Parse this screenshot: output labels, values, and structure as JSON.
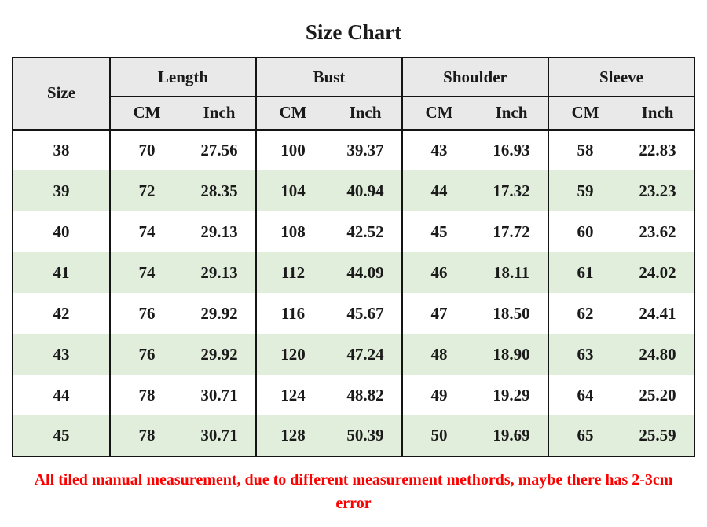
{
  "title": "Size Chart",
  "colors": {
    "header_bg": "#e9e9e9",
    "stripe_green": "#e1eedb",
    "border_black": "#141414",
    "text": "#1a1a1a",
    "note_red": "#fe0000"
  },
  "chart_data": {
    "type": "table",
    "title": "Size Chart",
    "corner_header": "Size",
    "column_groups": [
      "Length",
      "Bust",
      "Shoulder",
      "Sleeve"
    ],
    "unit_headers": [
      "CM",
      "Inch"
    ],
    "columns": [
      "Size",
      "Length CM",
      "Length Inch",
      "Bust CM",
      "Bust Inch",
      "Shoulder CM",
      "Shoulder Inch",
      "Sleeve CM",
      "Sleeve Inch"
    ],
    "rows": [
      [
        "38",
        "70",
        "27.56",
        "100",
        "39.37",
        "43",
        "16.93",
        "58",
        "22.83"
      ],
      [
        "39",
        "72",
        "28.35",
        "104",
        "40.94",
        "44",
        "17.32",
        "59",
        "23.23"
      ],
      [
        "40",
        "74",
        "29.13",
        "108",
        "42.52",
        "45",
        "17.72",
        "60",
        "23.62"
      ],
      [
        "41",
        "74",
        "29.13",
        "112",
        "44.09",
        "46",
        "18.11",
        "61",
        "24.02"
      ],
      [
        "42",
        "76",
        "29.92",
        "116",
        "45.67",
        "47",
        "18.50",
        "62",
        "24.41"
      ],
      [
        "43",
        "76",
        "29.92",
        "120",
        "47.24",
        "48",
        "18.90",
        "63",
        "24.80"
      ],
      [
        "44",
        "78",
        "30.71",
        "124",
        "48.82",
        "49",
        "19.29",
        "64",
        "25.20"
      ],
      [
        "45",
        "78",
        "30.71",
        "128",
        "50.39",
        "50",
        "19.69",
        "65",
        "25.59"
      ]
    ],
    "layout_hints": {
      "stripe_pattern": "even rows white, odd rows pale green",
      "header_rows": 2,
      "grid": "vertical separators between column groups only"
    },
    "footnote": "All tiled manual measurement, due to different measurement methords, maybe there has 2-3cm error"
  }
}
